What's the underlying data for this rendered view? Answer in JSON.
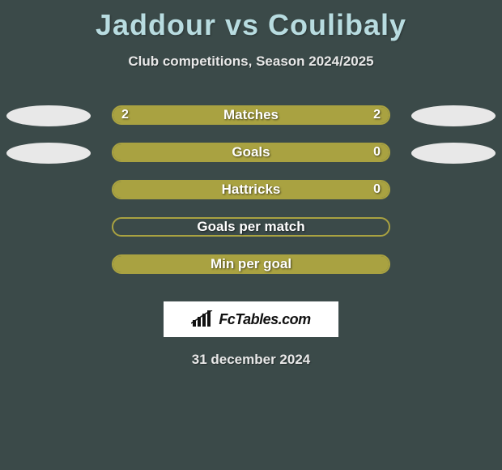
{
  "title": "Jaddour vs Coulibaly",
  "subtitle": "Club competitions, Season 2024/2025",
  "date": "31 december 2024",
  "brand": "FcTables.com",
  "colors": {
    "page_bg": "#3b4a49",
    "title_color": "#b8dce0",
    "text_color": "#e8e8e8",
    "accent": "#a9a241",
    "ellipse_fill": "#e8e8e8",
    "white": "#ffffff"
  },
  "stats": [
    {
      "label": "Matches",
      "left_value": "2",
      "right_value": "2",
      "left_pct": 50,
      "right_pct": 50,
      "fill_left": "#a9a241",
      "fill_right": "#a9a241",
      "show_ellipses": true,
      "ellipse_left": "#e8e8e8",
      "ellipse_right": "#e8e8e8"
    },
    {
      "label": "Goals",
      "left_value": "",
      "right_value": "0",
      "left_pct": 100,
      "right_pct": 0,
      "fill_left": "#a9a241",
      "fill_right": "transparent",
      "show_ellipses": true,
      "ellipse_left": "#e8e8e8",
      "ellipse_right": "#e8e8e8"
    },
    {
      "label": "Hattricks",
      "left_value": "",
      "right_value": "0",
      "left_pct": 100,
      "right_pct": 0,
      "fill_left": "#a9a241",
      "fill_right": "transparent",
      "show_ellipses": false
    },
    {
      "label": "Goals per match",
      "left_value": "",
      "right_value": "",
      "left_pct": 0,
      "right_pct": 0,
      "fill_left": "transparent",
      "fill_right": "transparent",
      "show_ellipses": false
    },
    {
      "label": "Min per goal",
      "left_value": "",
      "right_value": "",
      "left_pct": 100,
      "right_pct": 0,
      "fill_left": "#a9a241",
      "fill_right": "transparent",
      "show_ellipses": false
    }
  ]
}
